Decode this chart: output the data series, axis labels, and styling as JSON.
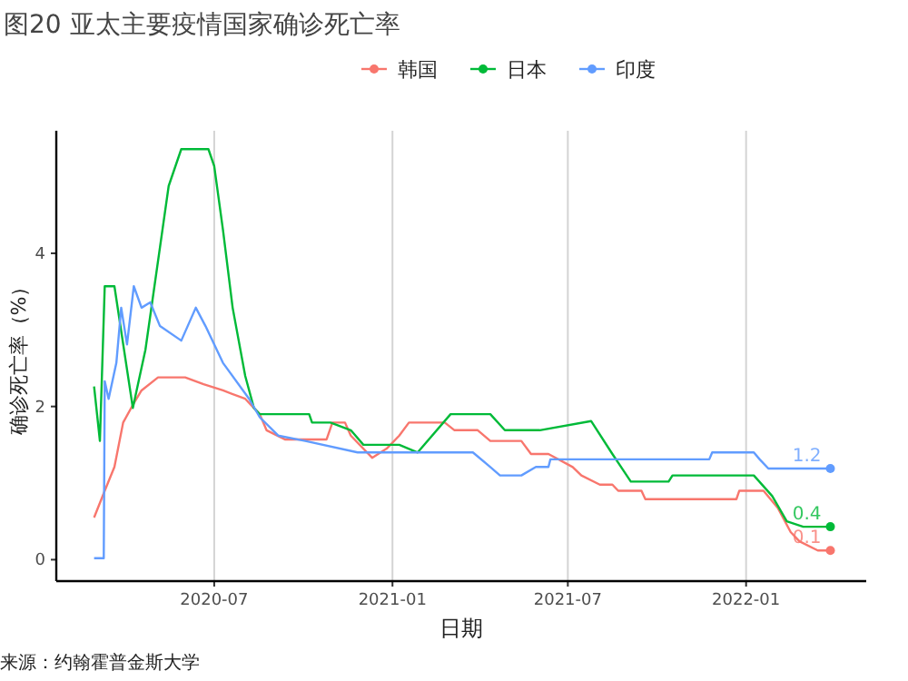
{
  "chart_data": {
    "type": "line",
    "title": "图20 亚太主要疫情国家确诊死亡率",
    "xlabel": "日期",
    "ylabel": "确诊死亡率（%）",
    "xlim": [
      "2020-01-20",
      "2022-05-05"
    ],
    "xticks": [
      {
        "value": "2020-07-01",
        "label": "2020-07"
      },
      {
        "value": "2021-01-01",
        "label": "2021-01"
      },
      {
        "value": "2021-07-01",
        "label": "2021-07"
      },
      {
        "value": "2022-01-01",
        "label": "2022-01"
      }
    ],
    "ylim": [
      -0.28,
      5.6
    ],
    "yticks": [
      0,
      2,
      4
    ],
    "grid": "x",
    "legend": "top",
    "series": [
      {
        "name": "韩国",
        "color": "#f8766d",
        "x": [
          "2020-02-28",
          "2020-03-10",
          "2020-03-20",
          "2020-03-29",
          "2020-04-08",
          "2020-04-17",
          "2020-05-04",
          "2020-06-01",
          "2020-06-20",
          "2020-07-10",
          "2020-08-02",
          "2020-08-17",
          "2020-08-24",
          "2020-09-12",
          "2020-10-25",
          "2020-10-31",
          "2020-11-13",
          "2020-11-19",
          "2020-12-11",
          "2020-12-26",
          "2021-01-08",
          "2021-01-18",
          "2021-02-24",
          "2021-03-06",
          "2021-03-30",
          "2021-04-12",
          "2021-05-14",
          "2021-05-24",
          "2021-06-11",
          "2021-07-06",
          "2021-07-15",
          "2021-08-03",
          "2021-08-16",
          "2021-08-22",
          "2021-09-15",
          "2021-09-19",
          "2021-12-22",
          "2021-12-25",
          "2022-01-19",
          "2022-02-03",
          "2022-02-16",
          "2022-02-25",
          "2022-03-16",
          "2022-03-29"
        ],
        "values": [
          0.55,
          0.9,
          1.21,
          1.79,
          2.02,
          2.21,
          2.38,
          2.38,
          2.29,
          2.21,
          2.1,
          1.9,
          1.69,
          1.57,
          1.57,
          1.79,
          1.79,
          1.62,
          1.33,
          1.45,
          1.62,
          1.79,
          1.79,
          1.69,
          1.69,
          1.55,
          1.55,
          1.38,
          1.38,
          1.21,
          1.1,
          0.98,
          0.98,
          0.9,
          0.9,
          0.79,
          0.79,
          0.9,
          0.9,
          0.67,
          0.36,
          0.24,
          0.12,
          0.12
        ]
      },
      {
        "name": "日本",
        "color": "#00ba38",
        "x": [
          "2020-02-28",
          "2020-03-05",
          "2020-03-10",
          "2020-03-20",
          "2020-04-08",
          "2020-04-21",
          "2020-05-15",
          "2020-05-28",
          "2020-06-25",
          "2020-07-01",
          "2020-07-10",
          "2020-07-20",
          "2020-08-02",
          "2020-08-11",
          "2020-08-17",
          "2020-10-07",
          "2020-10-10",
          "2020-10-29",
          "2020-11-19",
          "2020-12-02",
          "2021-01-08",
          "2021-01-27",
          "2021-03-02",
          "2021-04-12",
          "2021-04-27",
          "2021-06-02",
          "2021-07-25",
          "2021-08-16",
          "2021-09-04",
          "2021-10-13",
          "2021-10-17",
          "2022-01-09",
          "2022-01-28",
          "2022-02-12",
          "2022-03-01",
          "2022-03-29"
        ],
        "values": [
          2.26,
          1.55,
          3.57,
          3.57,
          1.98,
          2.74,
          4.88,
          5.36,
          5.36,
          5.14,
          4.31,
          3.29,
          2.4,
          1.98,
          1.9,
          1.9,
          1.79,
          1.79,
          1.69,
          1.5,
          1.5,
          1.4,
          1.9,
          1.9,
          1.69,
          1.69,
          1.81,
          1.38,
          1.02,
          1.02,
          1.1,
          1.1,
          0.83,
          0.5,
          0.43,
          0.43
        ]
      },
      {
        "name": "印度",
        "color": "#619cff",
        "x": [
          "2020-02-28",
          "2020-03-09",
          "2020-03-10",
          "2020-03-14",
          "2020-03-22",
          "2020-03-27",
          "2020-04-02",
          "2020-04-09",
          "2020-04-17",
          "2020-04-26",
          "2020-05-06",
          "2020-05-28",
          "2020-06-12",
          "2020-06-22",
          "2020-07-10",
          "2020-08-06",
          "2020-08-17",
          "2020-09-05",
          "2020-10-03",
          "2020-11-26",
          "2021-03-25",
          "2021-04-12",
          "2021-04-22",
          "2021-05-14",
          "2021-05-29",
          "2021-06-11",
          "2021-06-13",
          "2021-11-24",
          "2021-11-27",
          "2022-01-09",
          "2022-01-15",
          "2022-01-24",
          "2022-03-29"
        ],
        "values": [
          0.02,
          0.02,
          2.33,
          2.1,
          2.57,
          3.29,
          2.81,
          3.57,
          3.29,
          3.36,
          3.05,
          2.86,
          3.29,
          3.05,
          2.57,
          2.1,
          1.86,
          1.62,
          1.55,
          1.4,
          1.4,
          1.21,
          1.1,
          1.1,
          1.21,
          1.21,
          1.31,
          1.31,
          1.4,
          1.4,
          1.31,
          1.19,
          1.19
        ]
      }
    ],
    "annotations": [
      {
        "text": "1.2",
        "x": "2022-03-29",
        "y": 1.19
      },
      {
        "text": "0.4",
        "x": "2022-03-29",
        "y": 0.43
      },
      {
        "text": "0.1",
        "x": "2022-03-29",
        "y": 0.12
      },
      "来源：约翰霍普金斯大学"
    ]
  }
}
